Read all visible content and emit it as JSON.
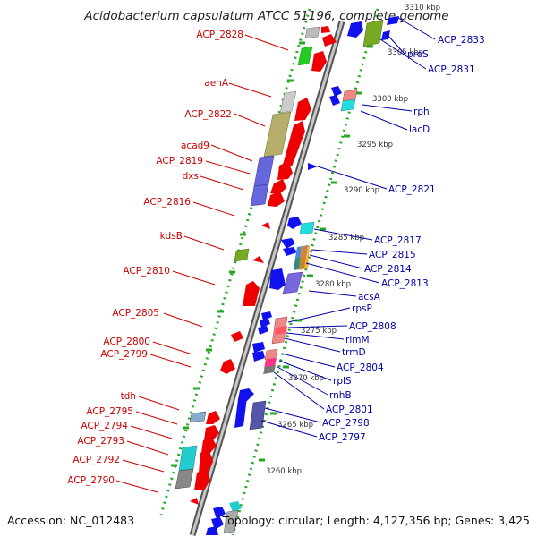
{
  "title": "Acidobacterium capsulatum ATCC 51196, complete genome",
  "footer": {
    "accession": "Accession: NC_012483",
    "topology": "Topology: circular; Length: 4,127,356 bp; Genes: 3,425"
  },
  "colors": {
    "plus_strand": "#ee0000",
    "minus_strand": "#1111ee",
    "backbone": "#888888",
    "ruler_dots": "#22aa22",
    "label_left": "#cc0000",
    "label_right": "#0000aa"
  },
  "scale_labels": [
    "3310 kbp",
    "3305 kbp",
    "3300 kbp",
    "3295 kbp",
    "3290 kbp",
    "3285 kbp",
    "3280 kbp",
    "3275 kbp",
    "3270 kbp",
    "3265 kbp",
    "3260 kbp"
  ],
  "left_labels": [
    "ACP_2828",
    "aehA",
    "ACP_2822",
    "acad9",
    "ACP_2819",
    "dxs",
    "ACP_2816",
    "kdsB",
    "ACP_2810",
    "ACP_2805",
    "ACP_2800",
    "ACP_2799",
    "tdh",
    "ACP_2795",
    "ACP_2794",
    "ACP_2793",
    "ACP_2792",
    "ACP_2790"
  ],
  "right_labels": [
    "ACP_2833",
    "proS",
    "ACP_2831",
    "rph",
    "lacD",
    "ACP_2821",
    "ACP_2817",
    "ACP_2815",
    "ACP_2814",
    "ACP_2813",
    "acsA",
    "rpsP",
    "ACP_2808",
    "rimM",
    "trmD",
    "ACP_2804",
    "rplS",
    "rnhB",
    "ACP_2801",
    "ACP_2798",
    "ACP_2797"
  ]
}
